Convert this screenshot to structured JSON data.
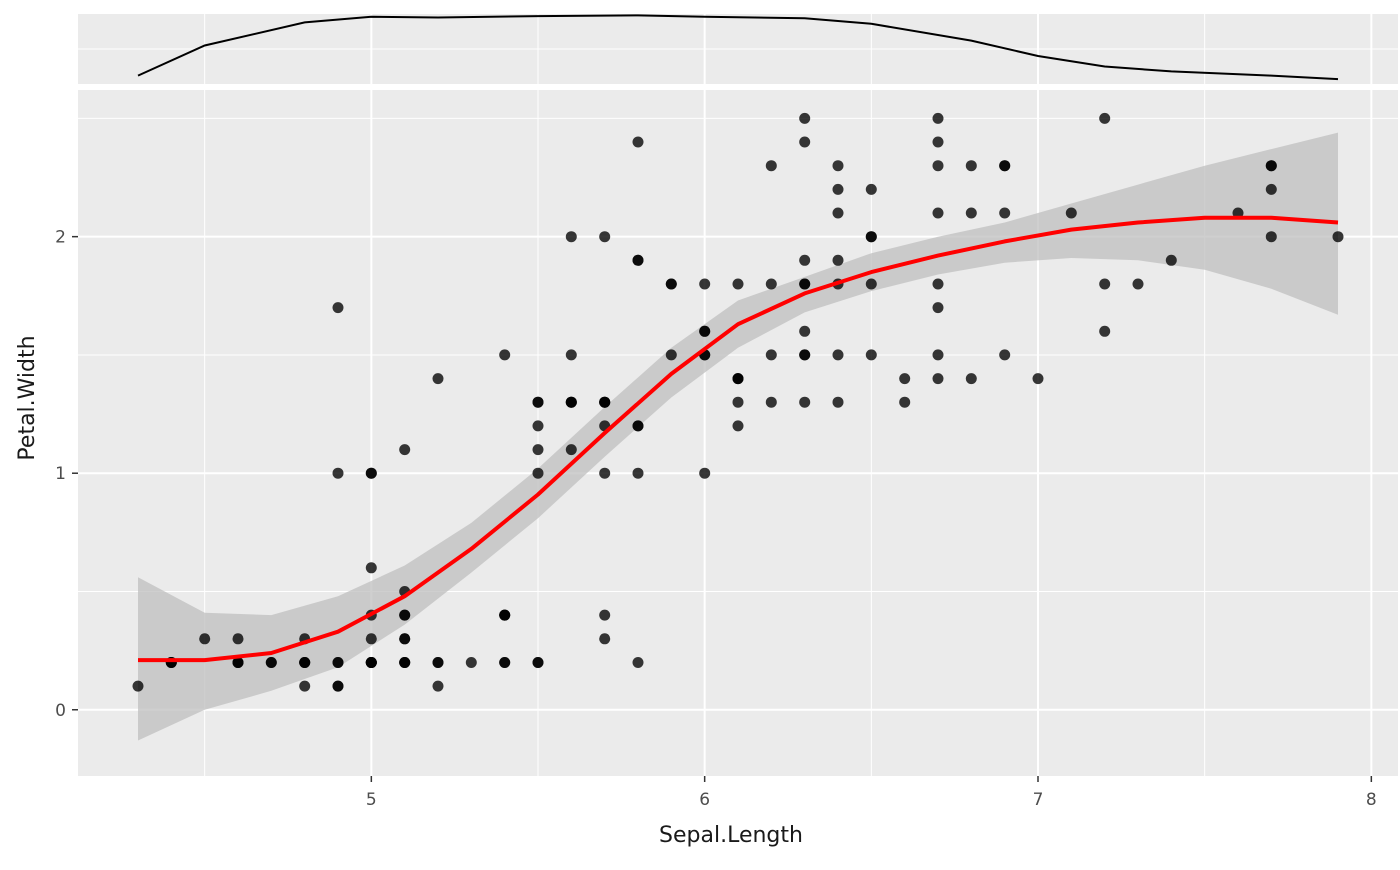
{
  "chart_data": {
    "type": "scatter",
    "title": "",
    "xlabel": "Sepal.Length",
    "ylabel": "Petal.Width",
    "xlim": [
      4.12,
      8.08
    ],
    "ylim": [
      -0.28,
      2.62
    ],
    "x_ticks": [
      5,
      6,
      7,
      8
    ],
    "y_ticks": [
      0,
      1,
      2
    ],
    "grid": true,
    "colors": {
      "panel_background": "#ebebeb",
      "grid": "#ffffff",
      "points": "#000000",
      "smooth_line": "#ff0000",
      "confidence_band": "#bfbfbf",
      "density_line": "#000000"
    },
    "points": [
      [
        5.1,
        0.2
      ],
      [
        4.9,
        0.2
      ],
      [
        4.7,
        0.2
      ],
      [
        4.6,
        0.2
      ],
      [
        5.0,
        0.2
      ],
      [
        5.4,
        0.4
      ],
      [
        4.6,
        0.3
      ],
      [
        5.0,
        0.2
      ],
      [
        4.4,
        0.2
      ],
      [
        4.9,
        0.1
      ],
      [
        5.4,
        0.2
      ],
      [
        4.8,
        0.2
      ],
      [
        4.8,
        0.1
      ],
      [
        4.3,
        0.1
      ],
      [
        5.8,
        0.2
      ],
      [
        5.7,
        0.4
      ],
      [
        5.4,
        0.4
      ],
      [
        5.1,
        0.3
      ],
      [
        5.7,
        0.3
      ],
      [
        5.1,
        0.3
      ],
      [
        5.4,
        0.2
      ],
      [
        5.1,
        0.4
      ],
      [
        4.6,
        0.2
      ],
      [
        5.1,
        0.5
      ],
      [
        4.8,
        0.2
      ],
      [
        5.0,
        0.2
      ],
      [
        5.0,
        0.4
      ],
      [
        5.2,
        0.2
      ],
      [
        5.2,
        0.2
      ],
      [
        4.7,
        0.2
      ],
      [
        4.8,
        0.2
      ],
      [
        5.4,
        0.4
      ],
      [
        5.2,
        0.1
      ],
      [
        5.5,
        0.2
      ],
      [
        4.9,
        0.2
      ],
      [
        5.0,
        0.2
      ],
      [
        5.5,
        0.2
      ],
      [
        4.9,
        0.1
      ],
      [
        4.4,
        0.2
      ],
      [
        5.1,
        0.2
      ],
      [
        5.0,
        0.3
      ],
      [
        4.5,
        0.3
      ],
      [
        4.4,
        0.2
      ],
      [
        5.0,
        0.6
      ],
      [
        5.1,
        0.4
      ],
      [
        4.8,
        0.3
      ],
      [
        5.1,
        0.2
      ],
      [
        4.6,
        0.2
      ],
      [
        5.3,
        0.2
      ],
      [
        5.0,
        0.2
      ],
      [
        7.0,
        1.4
      ],
      [
        6.4,
        1.5
      ],
      [
        6.9,
        1.5
      ],
      [
        5.5,
        1.3
      ],
      [
        6.5,
        1.5
      ],
      [
        5.7,
        1.3
      ],
      [
        6.3,
        1.6
      ],
      [
        4.9,
        1.0
      ],
      [
        6.6,
        1.3
      ],
      [
        5.2,
        1.4
      ],
      [
        5.0,
        1.0
      ],
      [
        5.9,
        1.5
      ],
      [
        6.0,
        1.0
      ],
      [
        6.1,
        1.4
      ],
      [
        5.6,
        1.3
      ],
      [
        6.7,
        1.4
      ],
      [
        5.6,
        1.5
      ],
      [
        5.8,
        1.0
      ],
      [
        6.2,
        1.5
      ],
      [
        5.6,
        1.1
      ],
      [
        5.9,
        1.8
      ],
      [
        6.1,
        1.3
      ],
      [
        6.3,
        1.5
      ],
      [
        6.1,
        1.2
      ],
      [
        6.4,
        1.3
      ],
      [
        6.6,
        1.4
      ],
      [
        6.8,
        1.4
      ],
      [
        6.7,
        1.7
      ],
      [
        6.0,
        1.5
      ],
      [
        5.7,
        1.0
      ],
      [
        5.5,
        1.1
      ],
      [
        5.5,
        1.0
      ],
      [
        5.8,
        1.2
      ],
      [
        6.0,
        1.6
      ],
      [
        5.4,
        1.5
      ],
      [
        6.0,
        1.6
      ],
      [
        6.7,
        1.5
      ],
      [
        6.3,
        1.3
      ],
      [
        5.6,
        1.3
      ],
      [
        5.5,
        1.3
      ],
      [
        5.5,
        1.2
      ],
      [
        6.1,
        1.4
      ],
      [
        5.8,
        1.2
      ],
      [
        5.0,
        1.0
      ],
      [
        5.6,
        1.3
      ],
      [
        5.7,
        1.2
      ],
      [
        5.7,
        1.3
      ],
      [
        6.2,
        1.3
      ],
      [
        5.1,
        1.1
      ],
      [
        5.7,
        1.3
      ],
      [
        6.3,
        2.5
      ],
      [
        5.8,
        1.9
      ],
      [
        7.1,
        2.1
      ],
      [
        6.3,
        1.8
      ],
      [
        6.5,
        2.2
      ],
      [
        7.6,
        2.1
      ],
      [
        4.9,
        1.7
      ],
      [
        7.3,
        1.8
      ],
      [
        6.7,
        1.8
      ],
      [
        7.2,
        2.5
      ],
      [
        6.5,
        2.0
      ],
      [
        6.4,
        1.9
      ],
      [
        6.8,
        2.1
      ],
      [
        5.7,
        2.0
      ],
      [
        5.8,
        2.4
      ],
      [
        6.4,
        2.3
      ],
      [
        6.5,
        1.8
      ],
      [
        7.7,
        2.2
      ],
      [
        7.7,
        2.3
      ],
      [
        6.0,
        1.5
      ],
      [
        6.9,
        2.3
      ],
      [
        5.6,
        2.0
      ],
      [
        7.7,
        2.0
      ],
      [
        6.3,
        1.8
      ],
      [
        6.7,
        2.1
      ],
      [
        7.2,
        1.8
      ],
      [
        6.2,
        1.8
      ],
      [
        6.1,
        1.8
      ],
      [
        6.4,
        2.1
      ],
      [
        7.2,
        1.6
      ],
      [
        7.4,
        1.9
      ],
      [
        7.9,
        2.0
      ],
      [
        6.4,
        2.2
      ],
      [
        6.3,
        1.5
      ],
      [
        6.1,
        1.4
      ],
      [
        7.7,
        2.3
      ],
      [
        6.3,
        2.4
      ],
      [
        6.4,
        1.8
      ],
      [
        6.0,
        1.8
      ],
      [
        6.9,
        2.1
      ],
      [
        6.7,
        2.4
      ],
      [
        6.9,
        2.3
      ],
      [
        5.8,
        1.9
      ],
      [
        6.8,
        2.3
      ],
      [
        6.7,
        2.5
      ],
      [
        6.7,
        2.3
      ],
      [
        6.3,
        1.9
      ],
      [
        6.5,
        2.0
      ],
      [
        6.2,
        2.3
      ],
      [
        5.9,
        1.8
      ]
    ],
    "smooth": {
      "x": [
        4.3,
        4.5,
        4.7,
        4.9,
        5.1,
        5.3,
        5.5,
        5.7,
        5.9,
        6.1,
        6.3,
        6.5,
        6.7,
        6.9,
        7.1,
        7.3,
        7.5,
        7.7,
        7.9
      ],
      "y": [
        0.21,
        0.21,
        0.24,
        0.33,
        0.48,
        0.68,
        0.91,
        1.17,
        1.42,
        1.63,
        1.76,
        1.85,
        1.92,
        1.98,
        2.03,
        2.06,
        2.08,
        2.08,
        2.06
      ],
      "lower": [
        -0.13,
        0.0,
        0.08,
        0.18,
        0.36,
        0.58,
        0.81,
        1.07,
        1.32,
        1.53,
        1.68,
        1.77,
        1.84,
        1.89,
        1.91,
        1.9,
        1.86,
        1.78,
        1.67
      ],
      "upper": [
        0.56,
        0.41,
        0.4,
        0.48,
        0.61,
        0.79,
        1.02,
        1.28,
        1.53,
        1.73,
        1.83,
        1.93,
        2.0,
        2.06,
        2.14,
        2.22,
        2.3,
        2.37,
        2.44
      ]
    },
    "marginal_density": {
      "x": [
        4.3,
        4.5,
        4.8,
        5.0,
        5.2,
        5.5,
        5.8,
        6.0,
        6.3,
        6.5,
        6.8,
        7.0,
        7.2,
        7.4,
        7.7,
        7.9
      ],
      "y": [
        0.12,
        0.55,
        0.88,
        0.96,
        0.95,
        0.97,
        0.98,
        0.96,
        0.94,
        0.86,
        0.62,
        0.4,
        0.25,
        0.18,
        0.12,
        0.07
      ]
    }
  }
}
